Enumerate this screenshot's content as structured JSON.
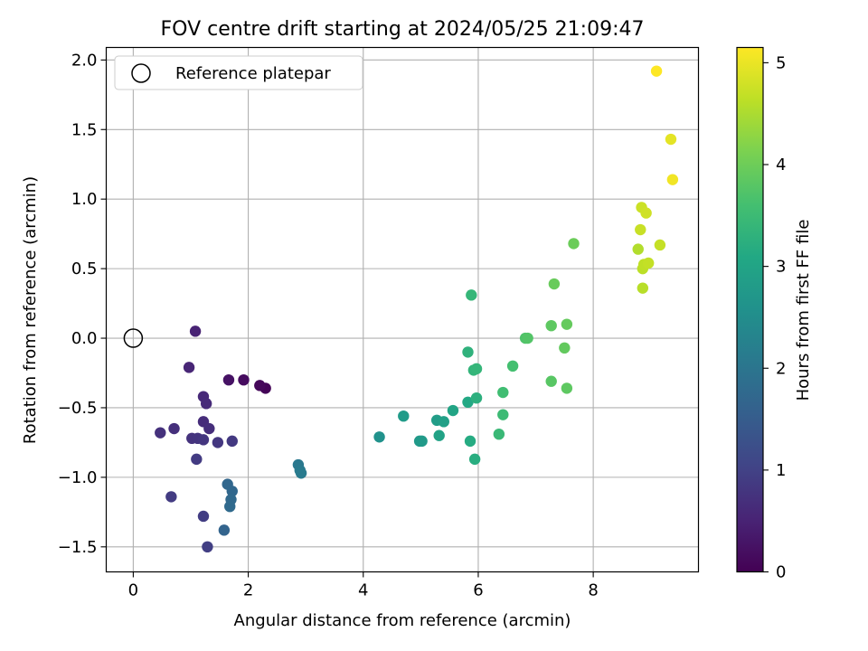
{
  "chart_data": {
    "type": "scatter",
    "title": "FOV centre drift starting at 2024/05/25 21:09:47",
    "xlabel": "Angular distance from reference (arcmin)",
    "ylabel": "Rotation from reference (arcmin)",
    "colorbar_label": "Hours from first FF file",
    "colormap": "viridis",
    "xlim": [
      -0.47,
      9.83
    ],
    "ylim": [
      -1.68,
      2.09
    ],
    "clim": [
      0,
      5.15
    ],
    "x_ticks": [
      0,
      2,
      4,
      6,
      8
    ],
    "y_ticks": [
      -1.5,
      -1.0,
      -0.5,
      0.0,
      0.5,
      1.0,
      1.5,
      2.0
    ],
    "y_tick_labels": [
      "−1.5",
      "−1.0",
      "−0.5",
      "0.0",
      "0.5",
      "1.0",
      "1.5",
      "2.0"
    ],
    "colorbar_ticks": [
      0,
      1,
      2,
      3,
      4,
      5
    ],
    "grid": true,
    "legend": {
      "position": "top-left",
      "entries": [
        "Reference platepar"
      ]
    },
    "reference": {
      "x": 0,
      "y": 0
    },
    "points": [
      {
        "x": 2.3,
        "y": -0.36,
        "c": 0.05
      },
      {
        "x": 2.2,
        "y": -0.34,
        "c": 0.1
      },
      {
        "x": 1.92,
        "y": -0.3,
        "c": 0.15
      },
      {
        "x": 1.66,
        "y": -0.3,
        "c": 0.25
      },
      {
        "x": 1.08,
        "y": 0.05,
        "c": 0.5
      },
      {
        "x": 0.97,
        "y": -0.21,
        "c": 0.55
      },
      {
        "x": 1.22,
        "y": -0.42,
        "c": 0.6
      },
      {
        "x": 1.27,
        "y": -0.47,
        "c": 0.62
      },
      {
        "x": 1.22,
        "y": -0.6,
        "c": 0.65
      },
      {
        "x": 1.32,
        "y": -0.65,
        "c": 0.68
      },
      {
        "x": 0.71,
        "y": -0.65,
        "c": 0.7
      },
      {
        "x": 0.47,
        "y": -0.68,
        "c": 0.72
      },
      {
        "x": 1.02,
        "y": -0.72,
        "c": 0.75
      },
      {
        "x": 1.12,
        "y": -0.72,
        "c": 0.78
      },
      {
        "x": 1.22,
        "y": -0.73,
        "c": 0.8
      },
      {
        "x": 1.47,
        "y": -0.75,
        "c": 0.82
      },
      {
        "x": 1.72,
        "y": -0.74,
        "c": 0.85
      },
      {
        "x": 1.1,
        "y": -0.87,
        "c": 0.88
      },
      {
        "x": 0.66,
        "y": -1.14,
        "c": 0.9
      },
      {
        "x": 1.22,
        "y": -1.28,
        "c": 0.92
      },
      {
        "x": 1.29,
        "y": -1.5,
        "c": 0.95
      },
      {
        "x": 1.58,
        "y": -1.38,
        "c": 1.65
      },
      {
        "x": 1.64,
        "y": -1.05,
        "c": 1.7
      },
      {
        "x": 1.72,
        "y": -1.1,
        "c": 1.72
      },
      {
        "x": 1.7,
        "y": -1.16,
        "c": 1.75
      },
      {
        "x": 1.68,
        "y": -1.21,
        "c": 1.78
      },
      {
        "x": 2.87,
        "y": -0.91,
        "c": 2.05
      },
      {
        "x": 2.9,
        "y": -0.95,
        "c": 2.1
      },
      {
        "x": 2.92,
        "y": -0.97,
        "c": 2.12
      },
      {
        "x": 4.28,
        "y": -0.71,
        "c": 2.6
      },
      {
        "x": 4.98,
        "y": -0.74,
        "c": 2.75
      },
      {
        "x": 5.02,
        "y": -0.74,
        "c": 2.78
      },
      {
        "x": 4.7,
        "y": -0.56,
        "c": 2.8
      },
      {
        "x": 5.28,
        "y": -0.59,
        "c": 2.85
      },
      {
        "x": 5.4,
        "y": -0.6,
        "c": 2.9
      },
      {
        "x": 5.32,
        "y": -0.7,
        "c": 2.95
      },
      {
        "x": 5.56,
        "y": -0.52,
        "c": 3.0
      },
      {
        "x": 5.82,
        "y": -0.46,
        "c": 3.1
      },
      {
        "x": 5.86,
        "y": -0.74,
        "c": 3.15
      },
      {
        "x": 5.94,
        "y": -0.87,
        "c": 3.2
      },
      {
        "x": 5.97,
        "y": -0.43,
        "c": 3.25
      },
      {
        "x": 5.82,
        "y": -0.1,
        "c": 3.3
      },
      {
        "x": 5.92,
        "y": -0.23,
        "c": 3.35
      },
      {
        "x": 5.97,
        "y": -0.22,
        "c": 3.38
      },
      {
        "x": 5.88,
        "y": 0.31,
        "c": 3.4
      },
      {
        "x": 6.36,
        "y": -0.69,
        "c": 3.45
      },
      {
        "x": 6.43,
        "y": -0.55,
        "c": 3.5
      },
      {
        "x": 6.43,
        "y": -0.39,
        "c": 3.55
      },
      {
        "x": 6.6,
        "y": -0.2,
        "c": 3.6
      },
      {
        "x": 6.82,
        "y": 0.0,
        "c": 3.7
      },
      {
        "x": 6.86,
        "y": 0.0,
        "c": 3.75
      },
      {
        "x": 7.27,
        "y": -0.31,
        "c": 3.8
      },
      {
        "x": 7.27,
        "y": 0.09,
        "c": 3.85
      },
      {
        "x": 7.54,
        "y": -0.36,
        "c": 3.85
      },
      {
        "x": 7.5,
        "y": -0.07,
        "c": 3.9
      },
      {
        "x": 7.54,
        "y": 0.1,
        "c": 3.92
      },
      {
        "x": 7.32,
        "y": 0.39,
        "c": 3.95
      },
      {
        "x": 7.66,
        "y": 0.68,
        "c": 3.98
      },
      {
        "x": 8.78,
        "y": 0.64,
        "c": 4.55
      },
      {
        "x": 8.86,
        "y": 0.36,
        "c": 4.6
      },
      {
        "x": 8.86,
        "y": 0.5,
        "c": 4.62
      },
      {
        "x": 8.88,
        "y": 0.53,
        "c": 4.65
      },
      {
        "x": 8.96,
        "y": 0.54,
        "c": 4.68
      },
      {
        "x": 9.16,
        "y": 0.67,
        "c": 4.7
      },
      {
        "x": 8.82,
        "y": 0.78,
        "c": 4.72
      },
      {
        "x": 8.84,
        "y": 0.94,
        "c": 4.75
      },
      {
        "x": 8.92,
        "y": 0.9,
        "c": 4.78
      },
      {
        "x": 9.35,
        "y": 1.43,
        "c": 4.95
      },
      {
        "x": 9.38,
        "y": 1.14,
        "c": 5.05
      },
      {
        "x": 9.1,
        "y": 1.92,
        "c": 5.15
      }
    ]
  }
}
